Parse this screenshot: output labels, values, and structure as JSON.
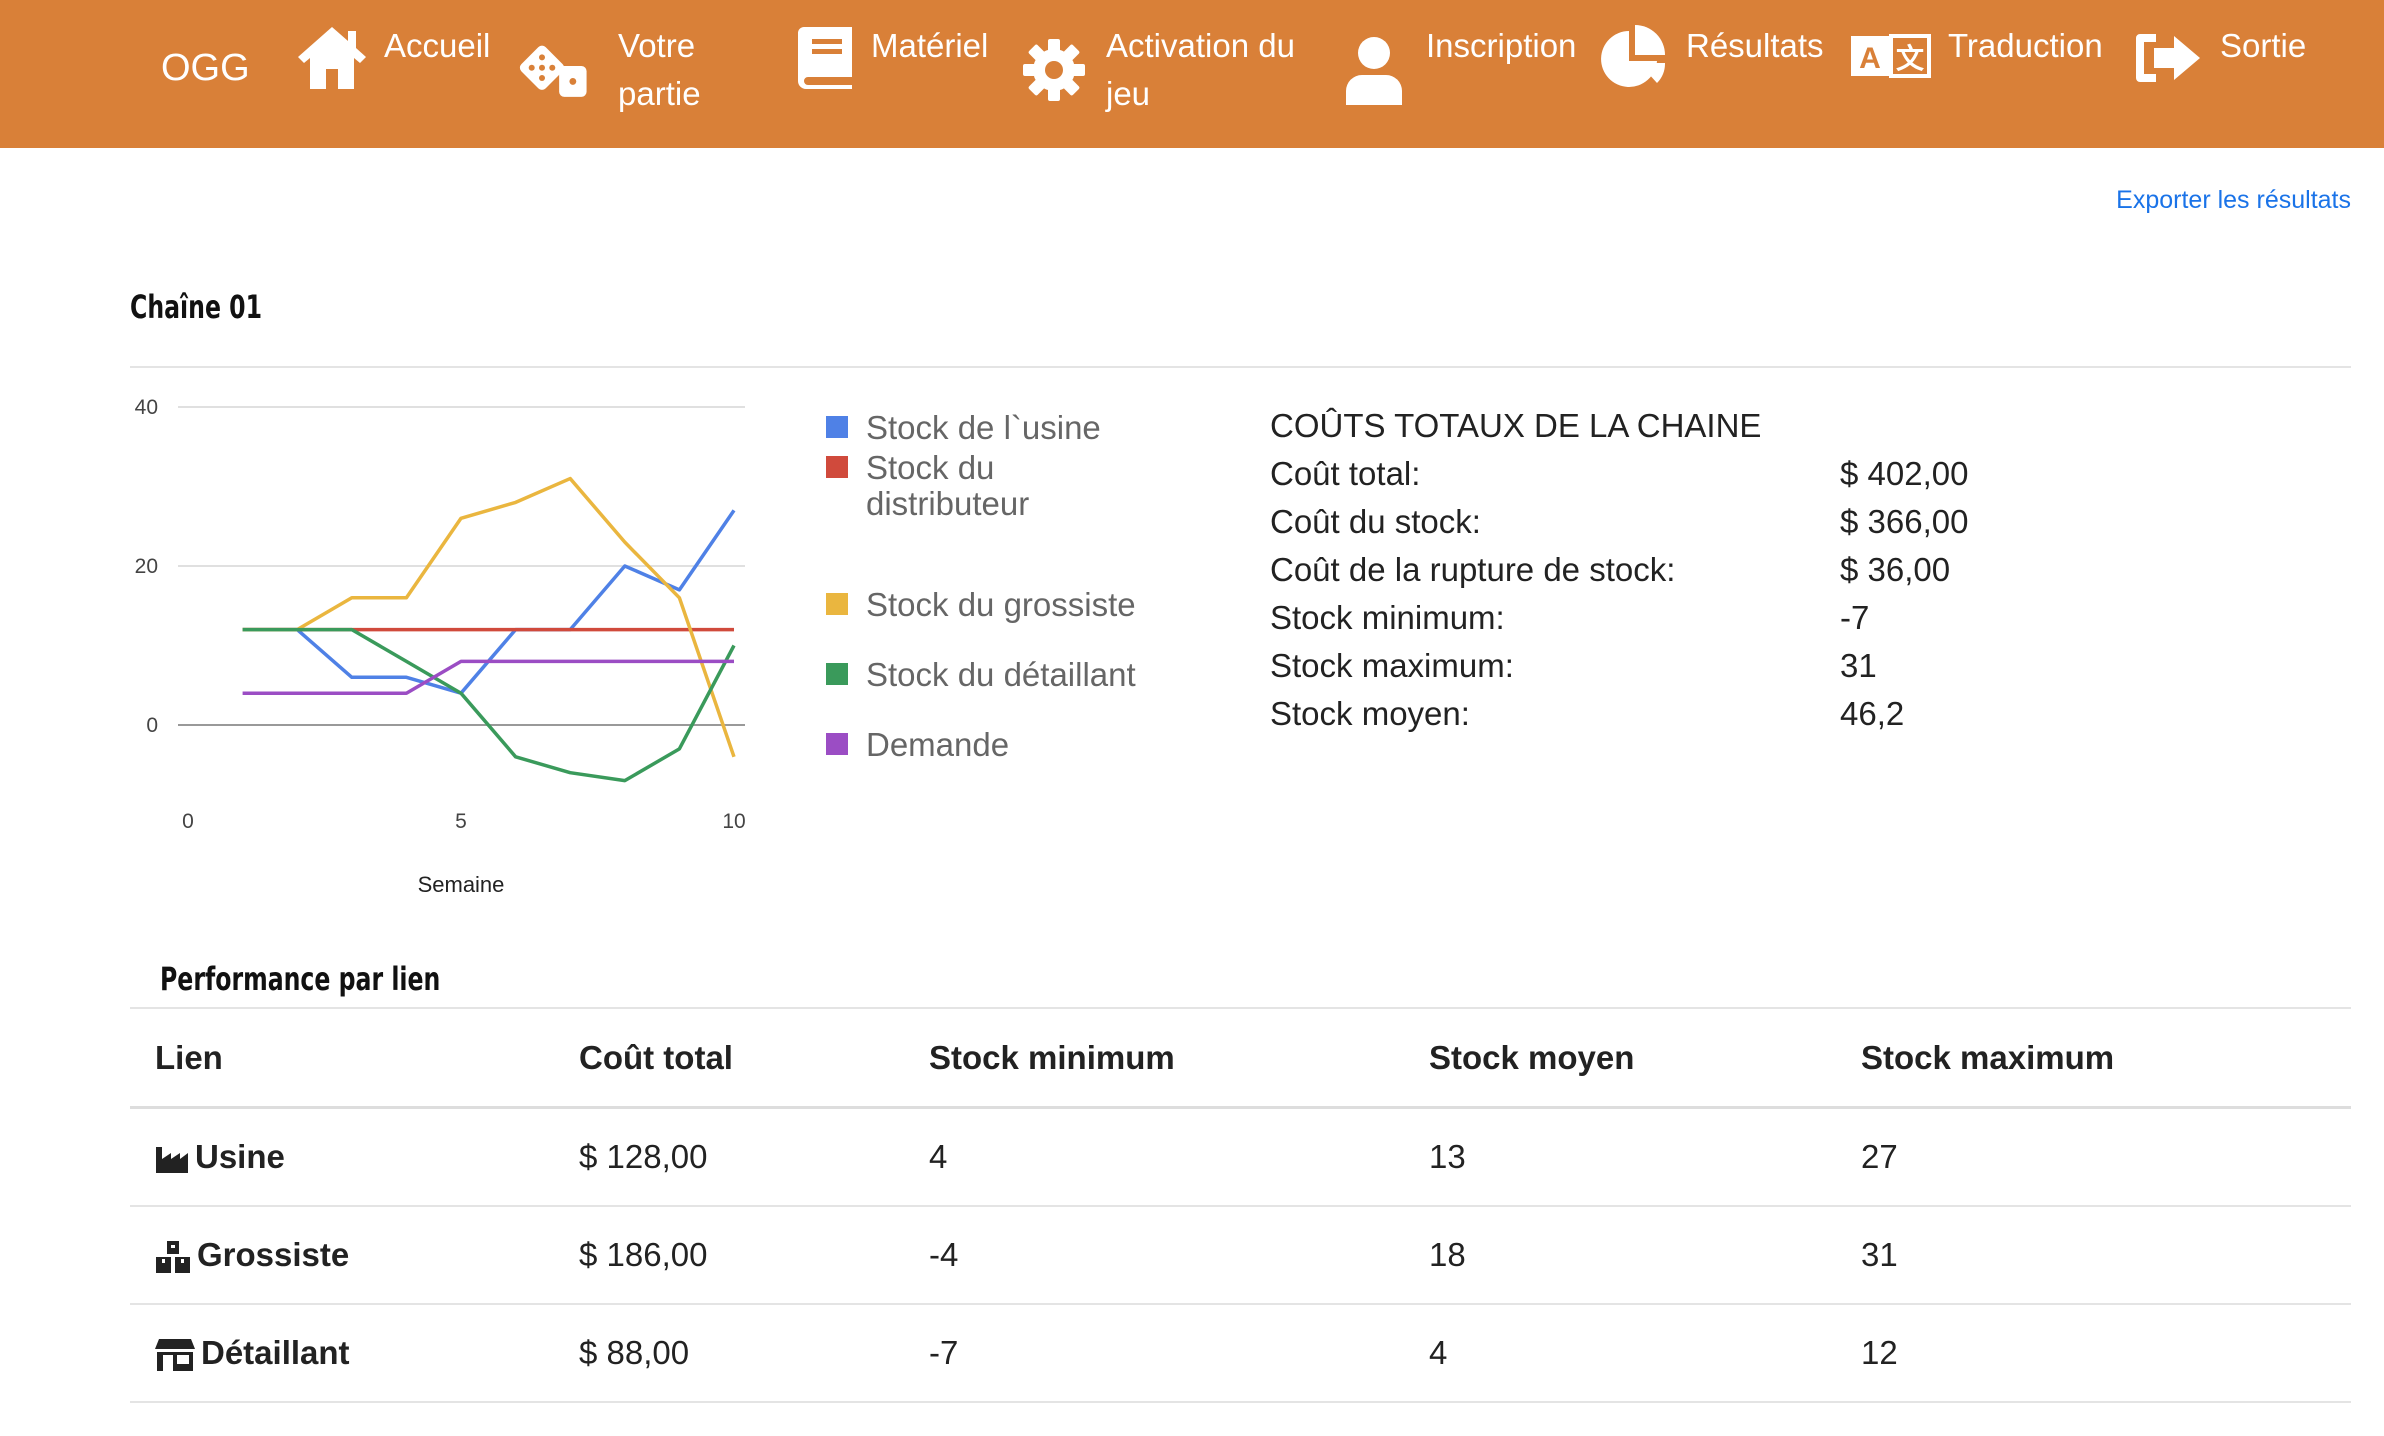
{
  "nav": {
    "brand": "OGG",
    "items": [
      {
        "label_lines": [
          "Accueil"
        ],
        "icon": "home-icon"
      },
      {
        "label_lines": [
          "Votre",
          "partie"
        ],
        "icon": "dice-icon"
      },
      {
        "label_lines": [
          "Matériel"
        ],
        "icon": "book-icon"
      },
      {
        "label_lines": [
          "Activation du",
          "jeu"
        ],
        "icon": "gear-icon"
      },
      {
        "label_lines": [
          "Inscription"
        ],
        "icon": "user-icon"
      },
      {
        "label_lines": [
          "Résultats"
        ],
        "icon": "pie-chart-icon"
      },
      {
        "label_lines": [
          "Traduction"
        ],
        "icon": "translate-icon"
      },
      {
        "label_lines": [
          "Sortie"
        ],
        "icon": "sign-out-icon"
      }
    ]
  },
  "export_label": "Exporter les résultats",
  "chain_title": "Chaîne 01",
  "chart_data": {
    "type": "line",
    "title": "",
    "xlabel": "Semaine",
    "ylabel": "",
    "xlim": [
      0,
      10
    ],
    "ylim": [
      -7,
      42
    ],
    "x_ticks": [
      0,
      5,
      10
    ],
    "y_ticks": [
      0,
      20,
      40
    ],
    "grid": true,
    "legend_position": "right",
    "x": [
      1,
      2,
      3,
      4,
      5,
      6,
      7,
      8,
      9,
      10
    ],
    "series": [
      {
        "name": "Stock de l`usine",
        "color": "#4f81e6",
        "values": [
          12,
          12,
          6,
          6,
          4,
          12,
          12,
          20,
          17,
          27
        ]
      },
      {
        "name": "Stock du distributeur",
        "color": "#d04a3c",
        "values": [
          12,
          12,
          12,
          12,
          12,
          12,
          12,
          12,
          12,
          12
        ]
      },
      {
        "name": "Stock du grossiste",
        "color": "#eab63f",
        "values": [
          12,
          12,
          16,
          16,
          26,
          28,
          31,
          23,
          16,
          -4
        ]
      },
      {
        "name": "Stock du détaillant",
        "color": "#3a9a5b",
        "values": [
          12,
          12,
          12,
          8,
          4,
          -4,
          -6,
          -7,
          -3,
          10
        ]
      },
      {
        "name": "Demande",
        "color": "#9b4dc4",
        "values": [
          4,
          4,
          4,
          4,
          8,
          8,
          8,
          8,
          8,
          8
        ]
      }
    ]
  },
  "legend_lines": [
    [
      "Stock de l`usine"
    ],
    [
      "Stock du",
      "distributeur"
    ],
    [
      "Stock du grossiste"
    ],
    [
      "Stock du détaillant"
    ],
    [
      "Demande"
    ]
  ],
  "costs": {
    "title": "COÛTS TOTAUX DE LA CHAINE",
    "rows": [
      {
        "k": "Coût total:",
        "v": "$ 402,00"
      },
      {
        "k": "Coût du stock:",
        "v": "$ 366,00"
      },
      {
        "k": "Coût de la rupture de stock:",
        "v": "$ 36,00"
      },
      {
        "k": "Stock minimum:",
        "v": "-7"
      },
      {
        "k": "Stock maximum:",
        "v": "31"
      },
      {
        "k": "Stock moyen:",
        "v": "46,2"
      }
    ]
  },
  "perf": {
    "title": "Performance par lien",
    "headers": [
      "Lien",
      "Coût total",
      "Stock minimum",
      "Stock moyen",
      "Stock maximum"
    ],
    "rows": [
      {
        "icon": "factory-icon",
        "name": "Usine",
        "cost": "$ 128,00",
        "min": "4",
        "avg": "13",
        "max": "27"
      },
      {
        "icon": "boxes-icon",
        "name": "Grossiste",
        "cost": "$ 186,00",
        "min": "-4",
        "avg": "18",
        "max": "31"
      },
      {
        "icon": "store-icon",
        "name": "Détaillant",
        "cost": "$ 88,00",
        "min": "-7",
        "avg": "4",
        "max": "12"
      }
    ]
  }
}
